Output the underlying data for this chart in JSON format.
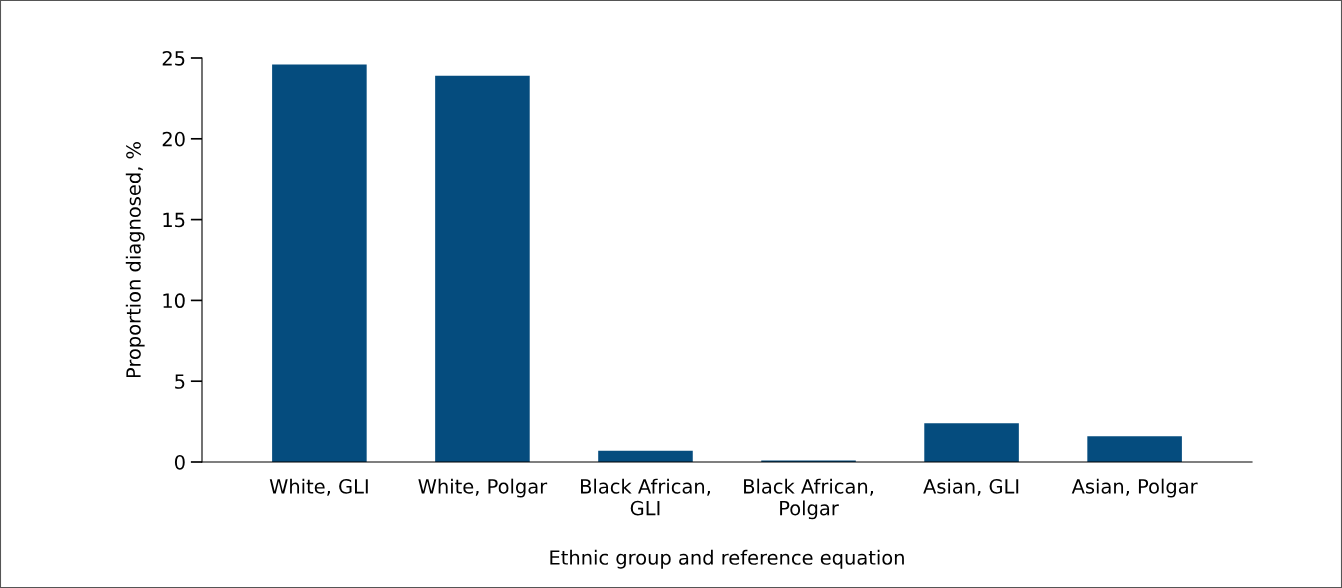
{
  "chart_data": {
    "type": "bar",
    "xlabel": "Ethnic group and reference equation",
    "ylabel": "Proportion diagnosed, %",
    "categories": [
      "White, GLI",
      "White, Polgar",
      "Black African,\nGLI",
      "Black African,\nPolgar",
      "Asian, GLI",
      "Asian, Polgar"
    ],
    "values": [
      24.6,
      23.9,
      0.7,
      0.1,
      2.4,
      1.6
    ],
    "color": "#054c7e",
    "ylim": [
      0,
      25
    ],
    "yticks": [
      0,
      5,
      10,
      15,
      20,
      25
    ],
    "grid": false,
    "legend": false
  }
}
